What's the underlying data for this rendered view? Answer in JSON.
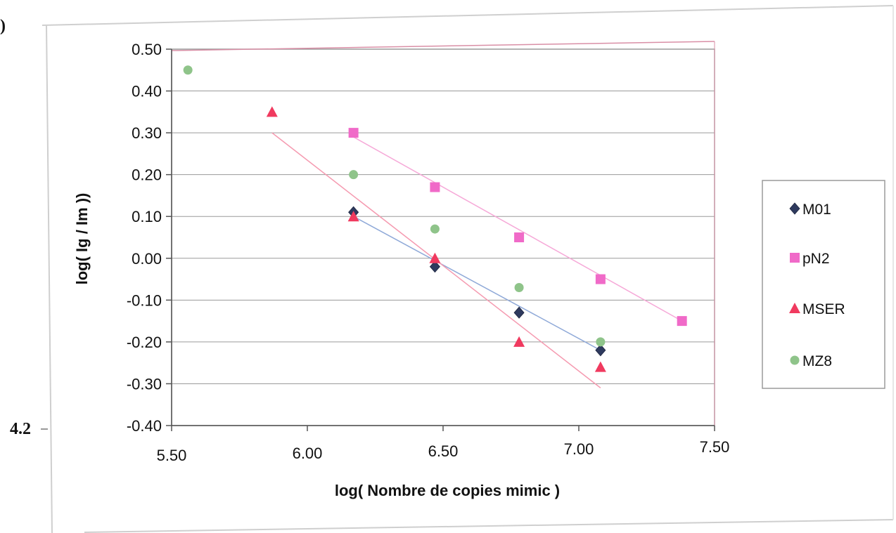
{
  "figure": {
    "panel_glyph": ")",
    "side_label": "4.2"
  },
  "chart_data": {
    "type": "scatter",
    "title": "",
    "xlabel": "log( Nombre de copies mimic )",
    "ylabel": "log( Ig / Im ))",
    "xlim": [
      5.5,
      7.5
    ],
    "ylim": [
      -0.4,
      0.5
    ],
    "xticks": [
      "5.50",
      "6.00",
      "6.50",
      "7.00",
      "7.50"
    ],
    "yticks": [
      "0.50",
      "0.40",
      "0.30",
      "0.20",
      "0.10",
      "0.00",
      "-0.10",
      "-0.20",
      "-0.30",
      "-0.40"
    ],
    "grid": true,
    "legend_position": "right",
    "series": [
      {
        "name": "M01",
        "marker": "diamond",
        "color": "#2e3a5e",
        "line_color": "#8fa9d8",
        "x": [
          6.17,
          6.47,
          6.78,
          7.08
        ],
        "y": [
          0.11,
          -0.02,
          -0.13,
          -0.22
        ],
        "trend": [
          [
            6.17,
            0.1
          ],
          [
            7.08,
            -0.22
          ]
        ]
      },
      {
        "name": "pN2",
        "marker": "square",
        "color": "#f06ac8",
        "line_color": "#f6a9d8",
        "x": [
          6.17,
          6.47,
          6.78,
          7.08,
          7.38
        ],
        "y": [
          0.3,
          0.17,
          0.05,
          -0.05,
          -0.15
        ],
        "trend": [
          [
            6.17,
            0.29
          ],
          [
            7.38,
            -0.15
          ]
        ]
      },
      {
        "name": "MSER",
        "marker": "triangle",
        "color": "#f03a5f",
        "line_color": "#f59ab0",
        "x": [
          5.87,
          6.17,
          6.47,
          6.78,
          7.08
        ],
        "y": [
          0.35,
          0.1,
          0.0,
          -0.2,
          -0.26
        ],
        "trend": [
          [
            5.87,
            0.3
          ],
          [
            7.08,
            -0.31
          ]
        ]
      },
      {
        "name": "MZ8",
        "marker": "circle",
        "color": "#8fc48a",
        "line_color": "#b8dcb4",
        "x": [
          5.56,
          6.17,
          6.47,
          6.78,
          7.08
        ],
        "y": [
          0.45,
          0.2,
          0.07,
          -0.07,
          -0.2
        ],
        "trend": []
      }
    ]
  }
}
